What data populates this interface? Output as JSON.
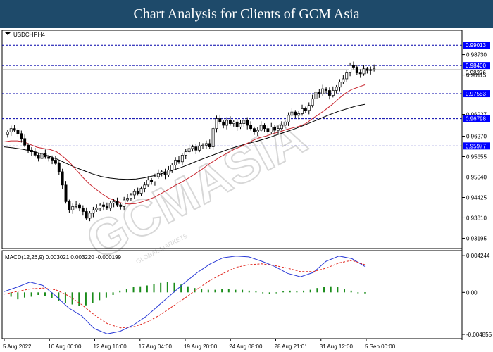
{
  "header": {
    "title": "Chart Analysis for Clients of GCM Asia"
  },
  "chart_data": {
    "type": "candlestick",
    "symbol_label": "USDCHF,H4",
    "colors": {
      "background": "#ffffff",
      "candle_up": "#000000",
      "candle_down": "#000000",
      "candle_up_fill": "#ffffff",
      "ma_fast": "#c8262f",
      "ma_slow": "#000000",
      "level_line": "#0000aa",
      "level_badge": "#0000ff",
      "macd_line": "#2a3ad6",
      "signal_line": "#e0261d",
      "histogram": "#1a8c1a",
      "header_bg": "#1e4a6a",
      "watermark": "#b8b8b8"
    },
    "price_axis": {
      "ylim": [
        0.9295,
        0.994
      ],
      "ticks": [
        "0.98730",
        "0.98115",
        "0.96927",
        "0.96270",
        "0.95655",
        "0.95040",
        "0.94425",
        "0.93810",
        "0.93195"
      ],
      "tick_values": [
        0.9873,
        0.98115,
        0.96927,
        0.9627,
        0.95655,
        0.9504,
        0.94425,
        0.9381,
        0.93195
      ],
      "current_price_label": "0.98276",
      "current_price": 0.98276
    },
    "levels": [
      {
        "label": "0.99013",
        "value": 0.99013
      },
      {
        "label": "0.98400",
        "value": 0.984
      },
      {
        "label": "0.97553",
        "value": 0.97553
      },
      {
        "label": "0.96798",
        "value": 0.96798
      },
      {
        "label": "0.95977",
        "value": 0.95977
      }
    ],
    "x_labels": [
      "5 Aug 2022",
      "10 Aug 00:00",
      "12 Aug 16:00",
      "17 Aug 04:00",
      "19 Aug 20:00",
      "24 Aug 08:00",
      "28 Aug 21:01",
      "31 Aug 12:00",
      "5 Sep 00:00"
    ],
    "close": [
      0.964,
      0.965,
      0.9645,
      0.9635,
      0.962,
      0.96,
      0.9585,
      0.958,
      0.957,
      0.956,
      0.9575,
      0.9565,
      0.956,
      0.9555,
      0.9545,
      0.952,
      0.948,
      0.943,
      0.9405,
      0.9415,
      0.942,
      0.941,
      0.94,
      0.938,
      0.9395,
      0.9405,
      0.941,
      0.942,
      0.9415,
      0.941,
      0.9425,
      0.943,
      0.942,
      0.9415,
      0.9435,
      0.944,
      0.945,
      0.946,
      0.9455,
      0.947,
      0.948,
      0.9495,
      0.949,
      0.9505,
      0.9515,
      0.952,
      0.951,
      0.9525,
      0.954,
      0.9555,
      0.955,
      0.957,
      0.958,
      0.959,
      0.9595,
      0.9585,
      0.9598,
      0.96,
      0.9605,
      0.9595,
      0.965,
      0.968,
      0.967,
      0.966,
      0.9675,
      0.9665,
      0.967,
      0.9655,
      0.9665,
      0.9675,
      0.966,
      0.965,
      0.964,
      0.9645,
      0.966,
      0.965,
      0.964,
      0.9655,
      0.9645,
      0.965,
      0.966,
      0.967,
      0.969,
      0.97,
      0.969,
      0.9695,
      0.971,
      0.9705,
      0.972,
      0.974,
      0.976,
      0.9755,
      0.977,
      0.9765,
      0.975,
      0.9765,
      0.9775,
      0.979,
      0.98,
      0.982,
      0.984,
      0.9835,
      0.982,
      0.9815,
      0.983,
      0.9825,
      0.9828,
      0.9831
    ],
    "ma_fast": [
      0.961,
      0.9613,
      0.9613,
      0.961,
      0.9602,
      0.9594,
      0.959,
      0.9587,
      0.958,
      0.9565,
      0.9548,
      0.9525,
      0.9503,
      0.9483,
      0.9467,
      0.9452,
      0.944,
      0.9432,
      0.9425,
      0.9423,
      0.9424,
      0.9429,
      0.9436,
      0.9444,
      0.9455,
      0.9466,
      0.9478,
      0.9488,
      0.95,
      0.9512,
      0.9525,
      0.954,
      0.9553,
      0.9565,
      0.9576,
      0.9587,
      0.9595,
      0.9605,
      0.9615,
      0.9623,
      0.9628,
      0.9635,
      0.964,
      0.9647,
      0.9652,
      0.9657,
      0.9665,
      0.968,
      0.9693,
      0.9707,
      0.9722,
      0.974,
      0.9756,
      0.9768,
      0.9775,
      0.9782
    ],
    "ma_slow": [
      0.9595,
      0.9592,
      0.9588,
      0.9583,
      0.9576,
      0.9568,
      0.9558,
      0.9546,
      0.9534,
      0.9524,
      0.9514,
      0.9506,
      0.9501,
      0.9498,
      0.9497,
      0.9498,
      0.9502,
      0.9508,
      0.9515,
      0.9523,
      0.9532,
      0.9542,
      0.9553,
      0.9563,
      0.9573,
      0.9583,
      0.9592,
      0.96,
      0.9607,
      0.9614,
      0.9622,
      0.9631,
      0.964,
      0.9649,
      0.9659,
      0.967,
      0.9681,
      0.9692,
      0.9702,
      0.971,
      0.9718,
      0.9723
    ],
    "macd_panel": {
      "label": "MACD(12,26,9) 0.003021 0.003220 -0.000199",
      "ylim": [
        -0.0051,
        0.0045
      ],
      "ticks": [
        "0.004244",
        "0.00",
        "-0.004855"
      ],
      "tick_values": [
        0.004244,
        0.0,
        -0.004855
      ],
      "histogram": [
        0.0,
        -0.0005,
        -0.0008,
        -0.0006,
        -0.0005,
        -0.0003,
        -0.0004,
        -0.0007,
        -0.001,
        -0.0012,
        -0.0014,
        -0.0016,
        -0.0015,
        -0.0012,
        -0.0009,
        -0.0006,
        -0.0003,
        0.0002,
        0.0004,
        0.0006,
        0.0007,
        0.0008,
        0.001,
        0.0011,
        0.0012,
        0.0011,
        0.0009,
        0.0007,
        0.0005,
        0.0004,
        0.0003,
        0.0003,
        0.0004,
        0.0004,
        0.0003,
        0.0003,
        0.0002,
        0.0001,
        -0.0001,
        -0.0002,
        -0.0001,
        0.0001,
        0.0002,
        0.0001,
        0.0002,
        0.0003,
        0.0005,
        0.0006,
        0.0007,
        0.0006,
        0.0004,
        0.0002,
        -0.0001,
        -0.0001
      ],
      "macd": [
        0.0001,
        0.0006,
        0.0012,
        0.0008,
        -0.0004,
        -0.0018,
        -0.0027,
        -0.0042,
        -0.0048,
        -0.0045,
        -0.0038,
        -0.0028,
        -0.0015,
        -0.0002,
        0.0011,
        0.0023,
        0.0033,
        0.004,
        0.0042,
        0.0041,
        0.0036,
        0.003,
        0.0022,
        0.0018,
        0.0023,
        0.0036,
        0.0042,
        0.0039,
        0.003
      ],
      "signal": [
        -0.0002,
        0.0001,
        0.0004,
        0.0005,
        0.0003,
        -0.0004,
        -0.0014,
        -0.0026,
        -0.0036,
        -0.0041,
        -0.004,
        -0.0035,
        -0.0027,
        -0.0017,
        -0.0007,
        0.0004,
        0.0014,
        0.0022,
        0.0029,
        0.0032,
        0.0033,
        0.0031,
        0.0028,
        0.0024,
        0.0024,
        0.0028,
        0.0034,
        0.0037,
        0.0032
      ]
    },
    "watermark": {
      "main": "GCMASIA",
      "secondary": "GLOBAL MARKETS"
    }
  }
}
